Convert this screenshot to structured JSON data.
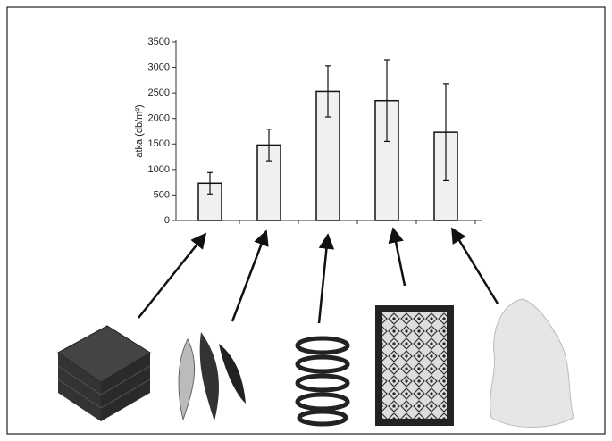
{
  "chart_data": {
    "type": "bar",
    "y_label": "atka (db/m²)",
    "categories": [
      null,
      null,
      null,
      null,
      null
    ],
    "values": [
      730,
      1480,
      2530,
      2350,
      1730
    ],
    "errors": [
      210,
      310,
      500,
      800,
      950
    ],
    "color": "#f0f0f0",
    "ylim": [
      0,
      3500
    ],
    "yticks": [
      0,
      500,
      1000,
      1500,
      2000,
      2500,
      3000,
      3500
    ],
    "grid": false
  }
}
